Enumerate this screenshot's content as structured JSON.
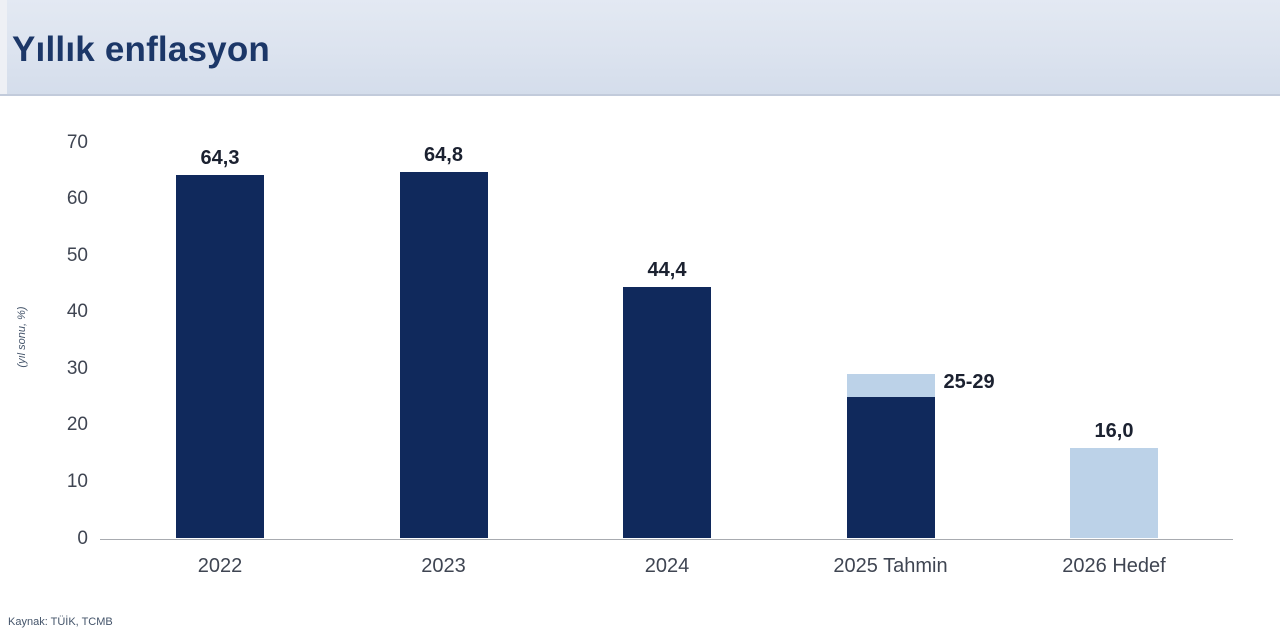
{
  "header": {
    "title": "Yıllık enflasyon"
  },
  "footer": {
    "source": "Kaynak: TÜİK, TCMB"
  },
  "chart_data": {
    "type": "bar",
    "title": "Yıllık enflasyon",
    "xlabel": "",
    "ylabel": "(yıl sonu, %)",
    "ylim": [
      0,
      70
    ],
    "yticks": [
      0,
      10,
      20,
      30,
      40,
      50,
      60,
      70
    ],
    "grid": false,
    "legend": "none",
    "categories": [
      "2022",
      "2023",
      "2024",
      "2025 Tahmin",
      "2026 Hedef"
    ],
    "series": [
      {
        "name": "dark",
        "color": "#10295c",
        "values": [
          64.3,
          64.8,
          44.4,
          25,
          0
        ]
      },
      {
        "name": "light",
        "color": "#bcd2e8",
        "values": [
          0,
          0,
          0,
          4,
          16
        ]
      }
    ],
    "bars": [
      {
        "category": "2022",
        "dark": 64.3,
        "light_top": null,
        "label": "64,3",
        "label_pos": "above"
      },
      {
        "category": "2023",
        "dark": 64.8,
        "light_top": null,
        "label": "64,8",
        "label_pos": "above"
      },
      {
        "category": "2024",
        "dark": 44.4,
        "light_top": null,
        "label": "44,4",
        "label_pos": "above"
      },
      {
        "category": "2025 Tahmin",
        "dark": 25,
        "light_top": 29,
        "label": "25-29",
        "label_pos": "right"
      },
      {
        "category": "2026 Hedef",
        "dark": 0,
        "light_top": 16,
        "label": "16,0",
        "label_pos": "above"
      }
    ],
    "colors": {
      "dark": "#10295c",
      "light": "#bcd2e8"
    }
  }
}
